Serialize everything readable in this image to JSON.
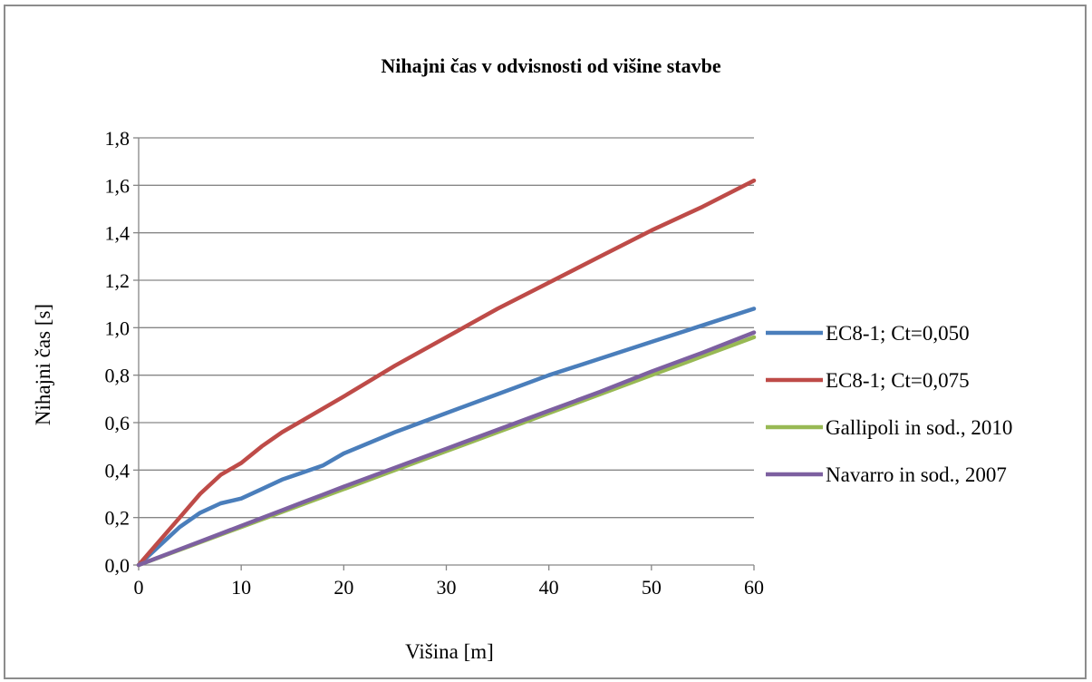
{
  "chart_data": {
    "type": "line",
    "title": "Nihajni čas v odvisnosti od višine stavbe",
    "xlabel": "Višina [m]",
    "ylabel": "Nihajni čas [s]",
    "xlim": [
      0,
      60
    ],
    "ylim": [
      0,
      1.8
    ],
    "x_ticks": [
      "0",
      "10",
      "20",
      "30",
      "40",
      "50",
      "60"
    ],
    "y_ticks": [
      "0,0",
      "0,2",
      "0,4",
      "0,6",
      "0,8",
      "1,0",
      "1,2",
      "1,4",
      "1,6",
      "1,8"
    ],
    "grid": "horizontal",
    "legend_position": "right",
    "x": [
      0,
      2,
      4,
      6,
      8,
      10,
      12,
      14,
      16,
      18,
      20,
      25,
      30,
      35,
      40,
      45,
      50,
      55,
      60
    ],
    "series": [
      {
        "name": "EC8-1; Ct=0,050",
        "color": "#4a7ebb",
        "values": [
          0,
          0.08,
          0.16,
          0.22,
          0.26,
          0.28,
          0.32,
          0.36,
          0.39,
          0.42,
          0.47,
          0.56,
          0.64,
          0.72,
          0.8,
          0.87,
          0.94,
          1.01,
          1.08
        ]
      },
      {
        "name": "EC8-1; Ct=0,075",
        "color": "#be4b48",
        "values": [
          0,
          0.1,
          0.2,
          0.3,
          0.38,
          0.43,
          0.5,
          0.56,
          0.61,
          0.66,
          0.71,
          0.84,
          0.96,
          1.08,
          1.19,
          1.3,
          1.41,
          1.51,
          1.62
        ]
      },
      {
        "name": "Gallipoli in sod., 2010",
        "color": "#98b954",
        "values": [
          0,
          0.032,
          0.064,
          0.096,
          0.128,
          0.16,
          0.192,
          0.224,
          0.256,
          0.288,
          0.32,
          0.4,
          0.48,
          0.56,
          0.64,
          0.72,
          0.8,
          0.88,
          0.96
        ]
      },
      {
        "name": "Navarro in sod., 2007",
        "color": "#7d60a0",
        "values": [
          0,
          0.033,
          0.066,
          0.099,
          0.132,
          0.165,
          0.198,
          0.231,
          0.264,
          0.297,
          0.33,
          0.41,
          0.49,
          0.57,
          0.65,
          0.73,
          0.815,
          0.895,
          0.98
        ]
      }
    ]
  }
}
